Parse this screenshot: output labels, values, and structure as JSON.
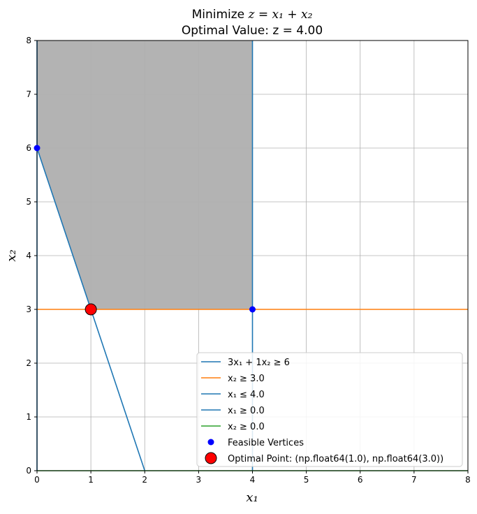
{
  "chart_data": {
    "type": "line",
    "title_line1_prefix": "Minimize ",
    "title_line1_math": "z = x₁ + x₂",
    "title_line2": "Optimal Value: z = 4.00",
    "xlabel": "x₁",
    "ylabel": "x₂",
    "xlim": [
      0,
      8
    ],
    "ylim": [
      0,
      8
    ],
    "xticks": [
      "0",
      "1",
      "2",
      "3",
      "4",
      "5",
      "6",
      "7",
      "8"
    ],
    "yticks": [
      "0",
      "1",
      "2",
      "3",
      "4",
      "5",
      "6",
      "7",
      "8"
    ],
    "grid": true,
    "legend_position": "lower-right",
    "feasible_region": {
      "color": "#b3b3b3",
      "points": [
        [
          0,
          6
        ],
        [
          0,
          8
        ],
        [
          4,
          8
        ],
        [
          4,
          3
        ],
        [
          1,
          3
        ]
      ]
    },
    "series": [
      {
        "name": "3x₁ + 1x₂ ≥ 6",
        "color": "#1f77b4",
        "points": [
          [
            0,
            6
          ],
          [
            2,
            0
          ]
        ]
      },
      {
        "name": "x₂ ≥ 3.0",
        "color": "#ff7f0e",
        "points": [
          [
            0,
            3
          ],
          [
            8,
            3
          ]
        ]
      },
      {
        "name": "x₁ ≤ 4.0",
        "color": "#1f77b4",
        "points": [
          [
            4,
            0
          ],
          [
            4,
            8
          ]
        ]
      },
      {
        "name": "x₁ ≥ 0.0",
        "color": "#1f77b4",
        "points": [
          [
            0,
            0
          ],
          [
            0,
            8
          ]
        ]
      },
      {
        "name": "x₂ ≥ 0.0",
        "color": "#2ca02c",
        "points": [
          [
            0,
            0
          ],
          [
            8,
            0
          ]
        ]
      }
    ],
    "feasible_vertices": {
      "name": "Feasible Vertices",
      "color": "#0000ff",
      "points": [
        [
          0,
          6
        ],
        [
          4,
          3
        ]
      ]
    },
    "optimal_point": {
      "name": "Optimal Point: (np.float64(1.0), np.float64(3.0))",
      "color": "#ff0000",
      "x": 1,
      "y": 3
    }
  }
}
